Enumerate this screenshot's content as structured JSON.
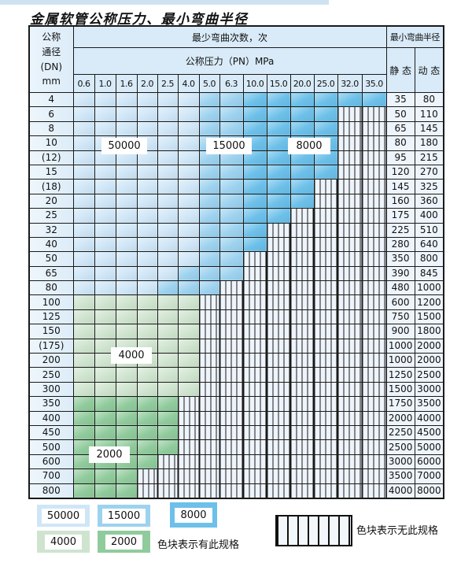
{
  "title": "金属软管公称压力、最小弯曲半径",
  "header": {
    "dn_lines": [
      "公称",
      "通径",
      "(DN)",
      "mm"
    ],
    "cycles_label": "最少弯曲次数，次",
    "pressure_label": "公称压力（PN）MPa",
    "radius_label": "最小弯曲半径",
    "static_label": "静 态",
    "dynamic_label": "动 态"
  },
  "chart_data": {
    "type": "table",
    "title": "金属软管公称压力、最小弯曲半径",
    "pressure_columns_mpa": [
      "0.6",
      "1.0",
      "1.6",
      "2.0",
      "2.5",
      "4.0",
      "5.0",
      "6.3",
      "10.0",
      "15.0",
      "20.0",
      "25.0",
      "32.0",
      "35.0"
    ],
    "cell_legend": {
      "L": "50000 bend cycles (light blue)",
      "M": "15000 bend cycles (medium blue)",
      "D": "8000 bend cycles (dark blue)",
      "g": "4000 bend cycles (light green)",
      "G": "2000 bend cycles (dark green)",
      "h": "no such specification (hatched)"
    },
    "rows": [
      {
        "dn": "4",
        "cells": "LLLLLLMMDDDDDD",
        "static": "35",
        "dynamic": "80"
      },
      {
        "dn": "6",
        "cells": "LLLLLLMMDDDDhh",
        "static": "50",
        "dynamic": "110"
      },
      {
        "dn": "8",
        "cells": "LLLLLLMMDDDDhh",
        "static": "65",
        "dynamic": "145"
      },
      {
        "dn": "10",
        "cells": "LLLLLLMMDDDDhh",
        "static": "80",
        "dynamic": "180"
      },
      {
        "dn": "(12)",
        "cells": "LLLLLLMMDDDDhh",
        "static": "95",
        "dynamic": "215"
      },
      {
        "dn": "15",
        "cells": "LLLLLLMMDDDDhh",
        "static": "120",
        "dynamic": "270"
      },
      {
        "dn": "(18)",
        "cells": "LLLLLLMMDDDhhh",
        "static": "145",
        "dynamic": "325"
      },
      {
        "dn": "20",
        "cells": "LLLLLLMMDDDhhh",
        "static": "160",
        "dynamic": "360"
      },
      {
        "dn": "25",
        "cells": "LLLLLLMMDDhhhh",
        "static": "175",
        "dynamic": "400"
      },
      {
        "dn": "32",
        "cells": "LLLLLLMMDhhhhh",
        "static": "225",
        "dynamic": "510"
      },
      {
        "dn": "40",
        "cells": "LLLLLLMMDhhhhh",
        "static": "280",
        "dynamic": "640"
      },
      {
        "dn": "50",
        "cells": "LLLLLLMMhhhhhh",
        "static": "350",
        "dynamic": "800"
      },
      {
        "dn": "65",
        "cells": "LLLLLMMMhhhhhh",
        "static": "390",
        "dynamic": "845"
      },
      {
        "dn": "80",
        "cells": "LLLLMMMhhhhhhh",
        "static": "480",
        "dynamic": "1000"
      },
      {
        "dn": "100",
        "cells": "gggggghhhhhhhh",
        "static": "600",
        "dynamic": "1200"
      },
      {
        "dn": "125",
        "cells": "gggggghhhhhhhh",
        "static": "750",
        "dynamic": "1500"
      },
      {
        "dn": "150",
        "cells": "gggggghhhhhhhh",
        "static": "900",
        "dynamic": "1800"
      },
      {
        "dn": "(175)",
        "cells": "gggggghhhhhhhh",
        "static": "1000",
        "dynamic": "2000"
      },
      {
        "dn": "200",
        "cells": "gggggghhhhhhhh",
        "static": "1000",
        "dynamic": "2000"
      },
      {
        "dn": "250",
        "cells": "gggggghhhhhhhh",
        "static": "1250",
        "dynamic": "2500"
      },
      {
        "dn": "300",
        "cells": "gggggghhhhhhhh",
        "static": "1500",
        "dynamic": "3000"
      },
      {
        "dn": "350",
        "cells": "GGGGGhhhhhhhhh",
        "static": "1750",
        "dynamic": "3500"
      },
      {
        "dn": "400",
        "cells": "GGGGGhhhhhhhhh",
        "static": "2000",
        "dynamic": "4000"
      },
      {
        "dn": "450",
        "cells": "GGGGGhhhhhhhhh",
        "static": "2250",
        "dynamic": "4500"
      },
      {
        "dn": "500",
        "cells": "GGGGGhhhhhhhhh",
        "static": "2500",
        "dynamic": "5000"
      },
      {
        "dn": "600",
        "cells": "GGGGhhhhhhhhhh",
        "static": "3000",
        "dynamic": "6000"
      },
      {
        "dn": "700",
        "cells": "GGGhhhhhhhhhhh",
        "static": "3500",
        "dynamic": "7000"
      },
      {
        "dn": "800",
        "cells": "GGGhhhhhhhhhhh",
        "static": "4000",
        "dynamic": "8000"
      }
    ]
  },
  "overlays": [
    {
      "text": "50000"
    },
    {
      "text": "15000"
    },
    {
      "text": "8000"
    },
    {
      "text": "4000"
    },
    {
      "text": "2000"
    }
  ],
  "legend": {
    "items": [
      {
        "label": "50000",
        "color_key": "light_blue"
      },
      {
        "label": "15000",
        "color_key": "medium_blue"
      },
      {
        "label": "8000",
        "color_key": "dark_blue"
      },
      {
        "label": "4000",
        "color_key": "light_green"
      },
      {
        "label": "2000",
        "color_key": "dark_green"
      }
    ],
    "has_spec_text": "色块表示有此规格",
    "no_spec_text": "色块表示无此规格"
  },
  "colors": {
    "light_blue": "#cfe6f7",
    "medium_blue": "#9dd2ef",
    "dark_blue": "#6cc0e9",
    "light_green": "#cfe4cf",
    "dark_green": "#90cb9c",
    "hatch_bg": "#eef4fb",
    "header_bg": "#d9ebf8",
    "dn_col_bg": "#dcecf8",
    "value_col_bg": "#edf4fb",
    "grid_line": "#1a1a1a"
  }
}
